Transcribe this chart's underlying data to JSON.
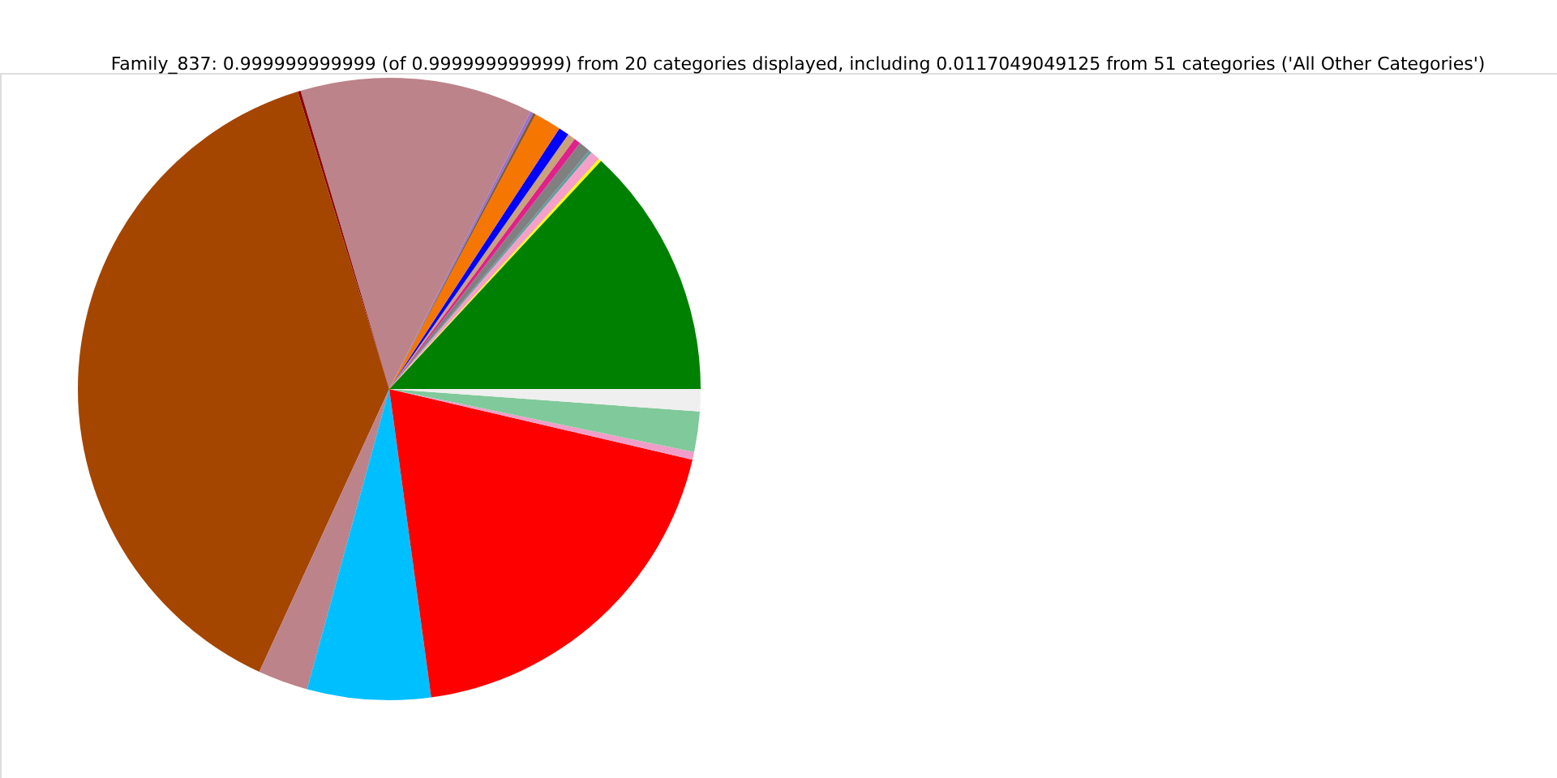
{
  "chart_data": {
    "type": "pie",
    "title": "Family_837: 0.999999999999 (of 0.999999999999) from 20 categories displayed, including 0.0117049049125 from 51 categories ('All Other Categories')",
    "categories": [
      null,
      null,
      null,
      null,
      null,
      null,
      null,
      null,
      null,
      null,
      null,
      null,
      null,
      null,
      null,
      null,
      null,
      null,
      null,
      null
    ],
    "values": [
      13.1,
      0.15,
      0.5,
      0.15,
      0.6,
      0.35,
      0.4,
      0.55,
      1.4,
      0.15,
      0.15,
      12.1,
      0.15,
      38.4,
      2.6,
      6.4,
      19.2,
      0.4,
      2.1,
      1.15
    ],
    "colors": [
      "#008000",
      "#ffff00",
      "#f4a0c8",
      "#5f9ea0",
      "#808080",
      "#e0218a",
      "#c8a27a",
      "#0000ff",
      "#f57600",
      "#8b5a2b",
      "#9370db",
      "#bc838a",
      "#8b0000",
      "#a44500",
      "#bc838a",
      "#00bfff",
      "#ff0000",
      "#f09ec8",
      "#80c99a",
      "#efefef"
    ]
  }
}
